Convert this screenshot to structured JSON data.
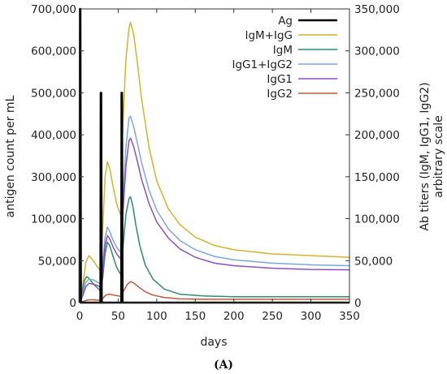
{
  "chart_data": {
    "type": "line",
    "xlabel": "days",
    "ylabel_left": "antigen count per mL",
    "ylabel_right_line1": "Ab titers (IgM, IgG1, IgG2)",
    "ylabel_right_line2": "arbitrary scale",
    "panel_label": "(A)",
    "xlim": [
      0,
      350
    ],
    "x_ticks": [
      "0",
      "50",
      "100",
      "150",
      "200",
      "250",
      "300",
      "350"
    ],
    "left_ticks": [
      "0",
      "50,000",
      "100,000",
      "300,000",
      "400,000",
      "500,000",
      "600,000",
      "700,000"
    ],
    "right_ticks": [
      "0",
      "50,000",
      "100,000",
      "150,000",
      "200,000",
      "250,000",
      "300,000",
      "350,000"
    ],
    "right_ylim": [
      0,
      350000
    ],
    "legend_position": "top-right",
    "series": [
      {
        "name": "Ag",
        "color": "#000000",
        "axis": "left",
        "points": [
          [
            0,
            0
          ],
          [
            0.4,
            700000
          ],
          [
            0.9,
            700000
          ],
          [
            1.6,
            0
          ],
          [
            27,
            0
          ],
          [
            27.4,
            500000
          ],
          [
            27.9,
            500000
          ],
          [
            28.6,
            0
          ],
          [
            54,
            0
          ],
          [
            54.4,
            500000
          ],
          [
            54.9,
            500000
          ],
          [
            55.6,
            0
          ],
          [
            350,
            0
          ]
        ]
      },
      {
        "name": "IgM+IgG",
        "color": "#d4b32a",
        "axis": "right",
        "points": [
          [
            0,
            0
          ],
          [
            4,
            20000
          ],
          [
            8,
            48000
          ],
          [
            12,
            56000
          ],
          [
            16,
            52000
          ],
          [
            22,
            44000
          ],
          [
            27,
            38000
          ],
          [
            30,
            90000
          ],
          [
            33,
            150000
          ],
          [
            36,
            168000
          ],
          [
            39,
            160000
          ],
          [
            43,
            140000
          ],
          [
            48,
            118000
          ],
          [
            53,
            104000
          ],
          [
            56,
            210000
          ],
          [
            60,
            290000
          ],
          [
            64,
            327000
          ],
          [
            66,
            334000
          ],
          [
            70,
            320000
          ],
          [
            75,
            285000
          ],
          [
            80,
            245000
          ],
          [
            90,
            185000
          ],
          [
            100,
            145000
          ],
          [
            115,
            112000
          ],
          [
            130,
            93000
          ],
          [
            150,
            78000
          ],
          [
            175,
            68000
          ],
          [
            200,
            63000
          ],
          [
            250,
            58000
          ],
          [
            300,
            56000
          ],
          [
            350,
            54000
          ]
        ]
      },
      {
        "name": "IgM",
        "color": "#2e8b6e",
        "axis": "right",
        "points": [
          [
            0,
            0
          ],
          [
            3,
            10000
          ],
          [
            6,
            26000
          ],
          [
            9,
            31000
          ],
          [
            12,
            29000
          ],
          [
            18,
            22000
          ],
          [
            27,
            14000
          ],
          [
            30,
            30000
          ],
          [
            33,
            58000
          ],
          [
            36,
            72000
          ],
          [
            39,
            68000
          ],
          [
            43,
            56000
          ],
          [
            48,
            42000
          ],
          [
            53,
            34000
          ],
          [
            56,
            64000
          ],
          [
            60,
            105000
          ],
          [
            64,
            124000
          ],
          [
            66,
            126000
          ],
          [
            69,
            115000
          ],
          [
            73,
            92000
          ],
          [
            78,
            68000
          ],
          [
            85,
            45000
          ],
          [
            95,
            28000
          ],
          [
            110,
            16000
          ],
          [
            130,
            10000
          ],
          [
            160,
            8000
          ],
          [
            200,
            7000
          ],
          [
            350,
            7000
          ]
        ]
      },
      {
        "name": "IgG1+IgG2",
        "color": "#7aa6dc",
        "axis": "right",
        "points": [
          [
            0,
            0
          ],
          [
            4,
            10000
          ],
          [
            8,
            24000
          ],
          [
            12,
            28000
          ],
          [
            18,
            27000
          ],
          [
            24,
            24000
          ],
          [
            27,
            22000
          ],
          [
            30,
            45000
          ],
          [
            33,
            78000
          ],
          [
            36,
            90000
          ],
          [
            39,
            85000
          ],
          [
            43,
            75000
          ],
          [
            48,
            66000
          ],
          [
            53,
            60000
          ],
          [
            56,
            120000
          ],
          [
            60,
            185000
          ],
          [
            64,
            220000
          ],
          [
            66,
            222000
          ],
          [
            70,
            210000
          ],
          [
            75,
            190000
          ],
          [
            80,
            168000
          ],
          [
            90,
            134000
          ],
          [
            100,
            110000
          ],
          [
            115,
            88000
          ],
          [
            130,
            74000
          ],
          [
            150,
            63000
          ],
          [
            175,
            55000
          ],
          [
            200,
            51000
          ],
          [
            250,
            47000
          ],
          [
            300,
            45000
          ],
          [
            350,
            44000
          ]
        ]
      },
      {
        "name": "IgG1",
        "color": "#8a4fc8",
        "axis": "right",
        "points": [
          [
            0,
            0
          ],
          [
            4,
            8000
          ],
          [
            8,
            19000
          ],
          [
            12,
            23000
          ],
          [
            18,
            22000
          ],
          [
            24,
            20000
          ],
          [
            27,
            18000
          ],
          [
            30,
            37000
          ],
          [
            33,
            68000
          ],
          [
            36,
            80000
          ],
          [
            39,
            76000
          ],
          [
            43,
            67000
          ],
          [
            48,
            58000
          ],
          [
            53,
            52000
          ],
          [
            56,
            105000
          ],
          [
            60,
            162000
          ],
          [
            64,
            193000
          ],
          [
            66,
            196000
          ],
          [
            70,
            186000
          ],
          [
            75,
            168000
          ],
          [
            80,
            148000
          ],
          [
            90,
            118000
          ],
          [
            100,
            96000
          ],
          [
            115,
            77000
          ],
          [
            130,
            64000
          ],
          [
            150,
            54000
          ],
          [
            175,
            47000
          ],
          [
            200,
            44000
          ],
          [
            250,
            41000
          ],
          [
            300,
            39500
          ],
          [
            350,
            39000
          ]
        ]
      },
      {
        "name": "IgG2",
        "color": "#c0563a",
        "axis": "right",
        "points": [
          [
            0,
            0
          ],
          [
            5,
            1500
          ],
          [
            10,
            3000
          ],
          [
            15,
            3500
          ],
          [
            22,
            3000
          ],
          [
            27,
            2800
          ],
          [
            30,
            5000
          ],
          [
            34,
            9000
          ],
          [
            38,
            10000
          ],
          [
            44,
            9000
          ],
          [
            50,
            8000
          ],
          [
            54,
            7500
          ],
          [
            57,
            14000
          ],
          [
            62,
            22000
          ],
          [
            66,
            25000
          ],
          [
            70,
            23500
          ],
          [
            76,
            19000
          ],
          [
            85,
            13000
          ],
          [
            95,
            9000
          ],
          [
            110,
            6000
          ],
          [
            130,
            4500
          ],
          [
            160,
            4000
          ],
          [
            200,
            4000
          ],
          [
            350,
            4000
          ]
        ]
      }
    ]
  }
}
